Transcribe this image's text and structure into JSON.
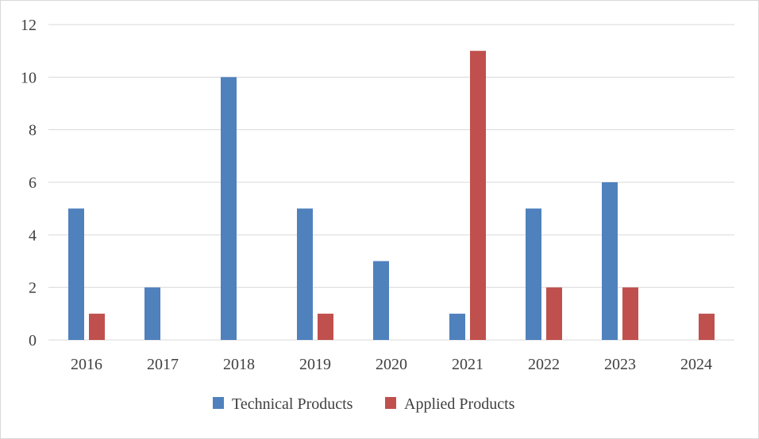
{
  "chart_data": {
    "type": "bar",
    "title": "",
    "xlabel": "",
    "ylabel": "",
    "categories": [
      "2016",
      "2017",
      "2018",
      "2019",
      "2020",
      "2021",
      "2022",
      "2023",
      "2024"
    ],
    "series": [
      {
        "name": "Technical Products",
        "color": "#4F81BD",
        "values": [
          5,
          2,
          10,
          5,
          3,
          1,
          5,
          6,
          0
        ]
      },
      {
        "name": "Applied Products",
        "color": "#C0504D",
        "values": [
          1,
          0,
          0,
          1,
          0,
          11,
          2,
          2,
          1
        ]
      }
    ],
    "ylim": [
      0,
      12
    ],
    "yticks": [
      "0",
      "2",
      "4",
      "6",
      "8",
      "10",
      "12"
    ],
    "grid": true,
    "legend": "bottom-center"
  }
}
